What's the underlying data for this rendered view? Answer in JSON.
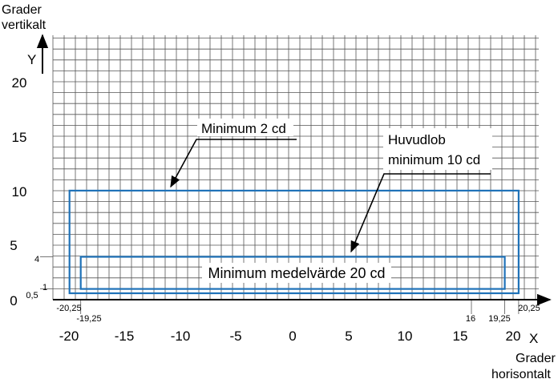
{
  "axes": {
    "y_title_line1": "Grader",
    "y_title_line2": "vertikalt",
    "y_symbol": "Y",
    "x_symbol": "X",
    "x_title_line1": "Grader",
    "x_title_line2": "horisontalt",
    "x_ticks": [
      "-20",
      "-15",
      "-10",
      "-5",
      "0",
      "5",
      "10",
      "15",
      "20"
    ],
    "y_ticks": [
      "0",
      "5",
      "10",
      "15",
      "20"
    ]
  },
  "small_labels": {
    "x_neg_2025": "-20,25",
    "x_neg_1925": "-19,25",
    "x_16": "16",
    "x_1925": "19,25",
    "x_2025": "20,25",
    "y_4": "4",
    "y_1": "1",
    "y_05": "0,5"
  },
  "callouts": {
    "min2": "Minimum 2 cd",
    "huvud_line1": "Huvudlob",
    "huvud_line2": "minimum 10 cd",
    "medel": "Minimum medelvärde 20 cd"
  },
  "colors": {
    "grid": "#555555",
    "zone": "#1f72b8",
    "ink": "#000000"
  }
}
